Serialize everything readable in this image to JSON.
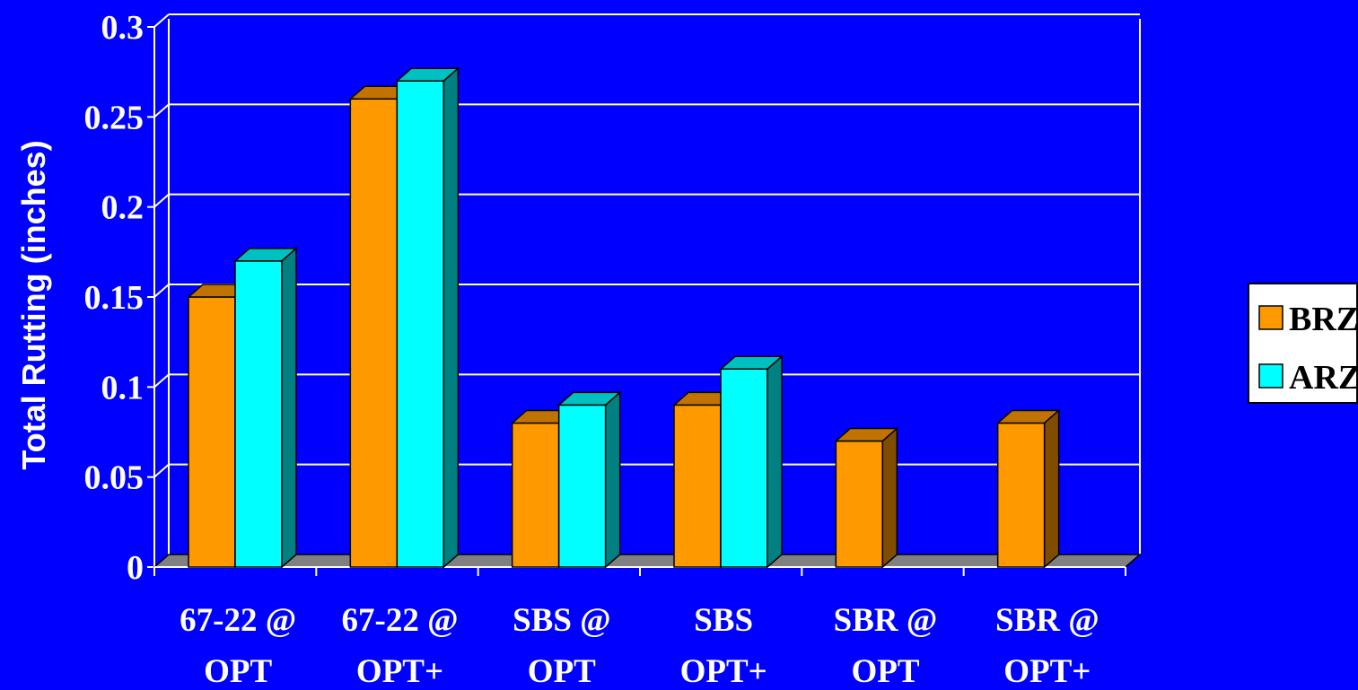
{
  "chart_data": {
    "type": "bar",
    "title": "",
    "xlabel": "",
    "ylabel": "Total Rutting (inches)",
    "ylim": [
      0,
      0.3
    ],
    "yticks": [
      "0",
      "0.05",
      "0.1",
      "0.15",
      "0.2",
      "0.25",
      "0.3"
    ],
    "grid": true,
    "legend_position": "right",
    "categories": [
      [
        "67-22 @",
        "OPT"
      ],
      [
        "67-22 @",
        "OPT+"
      ],
      [
        "SBS @",
        "OPT"
      ],
      [
        "SBS",
        "OPT+"
      ],
      [
        "SBR @",
        "OPT"
      ],
      [
        "SBR @",
        "OPT+"
      ]
    ],
    "series": [
      {
        "name": "BRZ",
        "values": [
          0.15,
          0.26,
          0.08,
          0.09,
          0.07,
          0.08
        ],
        "color": "#FF9900",
        "side_color": "#804D00",
        "top_color": "#C07300"
      },
      {
        "name": "ARZ",
        "values": [
          0.17,
          0.27,
          0.09,
          0.11,
          null,
          null
        ],
        "color": "#00FFFF",
        "side_color": "#008080",
        "top_color": "#00C0C0"
      }
    ],
    "colors": {
      "background": "#0000FF",
      "gridline": "#FFFFFF",
      "floor": "#808080",
      "text": "#FFFFFF",
      "legend_bg": "#FFFFFF"
    }
  }
}
